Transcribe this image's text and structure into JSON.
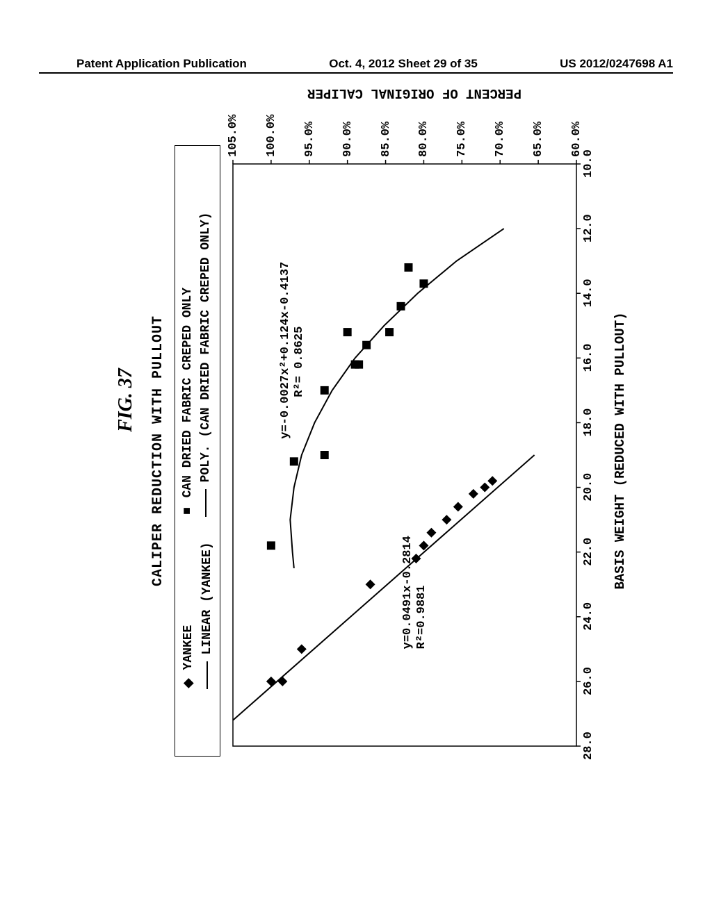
{
  "header": {
    "left": "Patent Application Publication",
    "center": "Oct. 4, 2012  Sheet 29 of 35",
    "right": "US 2012/0247698 A1"
  },
  "figure_label": "FIG. 37",
  "chart": {
    "title": "CALIPER REDUCTION WITH PULLOUT",
    "x_axis_title": "BASIS WEIGHT (REDUCED WITH PULLOUT)",
    "y_axis_title": "PERCENT OF ORIGINAL CALIPER",
    "plot_bg": "#ffffff",
    "axis_color": "#000000",
    "x_reversed": true,
    "xlim": [
      10.0,
      28.0
    ],
    "ylim": [
      0.6,
      1.05
    ],
    "x_ticks": [
      28.0,
      26.0,
      24.0,
      22.0,
      20.0,
      18.0,
      16.0,
      14.0,
      12.0,
      10.0
    ],
    "x_tick_labels": [
      "28.0",
      "26.0",
      "24.0",
      "22.0",
      "20.0",
      "18.0",
      "16.0",
      "14.0",
      "12.0",
      "10.0"
    ],
    "y_ticks": [
      0.6,
      0.65,
      0.7,
      0.75,
      0.8,
      0.85,
      0.9,
      0.95,
      1.0,
      1.05
    ],
    "y_tick_labels": [
      "60.0%",
      "65.0%",
      "70.0%",
      "75.0%",
      "80.0%",
      "85.0%",
      "90.0%",
      "95.0%",
      "100.0%",
      "105.0%"
    ],
    "tick_fontsize": 17,
    "title_fontsize": 20,
    "axis_title_fontsize": 19,
    "legend": {
      "series1_marker": "◆",
      "series1_label": "YANKEE",
      "series1_fit": "LINEAR (YANKEE)",
      "series2_marker": "■",
      "series2_label": "CAN DRIED FABRIC CREPED ONLY",
      "series2_fit": "POLY. (CAN DRIED FABRIC CREPED ONLY)"
    },
    "series": {
      "yankee": {
        "marker": "diamond",
        "marker_size": 7,
        "color": "#000000",
        "points": [
          [
            26.0,
            1.0
          ],
          [
            26.0,
            0.985
          ],
          [
            25.0,
            0.96
          ],
          [
            23.0,
            0.87
          ],
          [
            21.4,
            0.79
          ],
          [
            21.0,
            0.77
          ],
          [
            20.6,
            0.755
          ],
          [
            20.2,
            0.735
          ],
          [
            20.0,
            0.72
          ],
          [
            19.8,
            0.71
          ],
          [
            22.2,
            0.81
          ],
          [
            21.8,
            0.8
          ]
        ],
        "fit_type": "linear",
        "fit_eq": "y=0.0491x-0.2814",
        "fit_r2": "R²=0.9881",
        "fit_line": [
          [
            27.2,
            1.05
          ],
          [
            19.0,
            0.655
          ]
        ]
      },
      "can_dried": {
        "marker": "square",
        "marker_size": 6,
        "color": "#000000",
        "points": [
          [
            21.8,
            1.0
          ],
          [
            19.2,
            0.97
          ],
          [
            19.0,
            0.93
          ],
          [
            17.0,
            0.93
          ],
          [
            16.2,
            0.89
          ],
          [
            16.2,
            0.885
          ],
          [
            15.6,
            0.875
          ],
          [
            15.2,
            0.9
          ],
          [
            15.2,
            0.845
          ],
          [
            14.4,
            0.83
          ],
          [
            13.7,
            0.8
          ],
          [
            13.2,
            0.82
          ]
        ],
        "fit_type": "poly2",
        "fit_eq": "y=-0.0027x²+0.124x-0.4137",
        "fit_r2": "R²= 0.8625",
        "fit_curve": [
          [
            12.0,
            0.695
          ],
          [
            13.0,
            0.757
          ],
          [
            14.0,
            0.808
          ],
          [
            15.0,
            0.852
          ],
          [
            16.0,
            0.89
          ],
          [
            17.0,
            0.92
          ],
          [
            18.0,
            0.943
          ],
          [
            19.0,
            0.96
          ],
          [
            20.0,
            0.97
          ],
          [
            21.0,
            0.975
          ],
          [
            22.0,
            0.972
          ],
          [
            22.5,
            0.97
          ]
        ]
      }
    },
    "annotations": {
      "yankee_eq_pos": [
        25.0,
        0.83
      ],
      "can_eq_pos": [
        18.5,
        0.99
      ]
    }
  }
}
